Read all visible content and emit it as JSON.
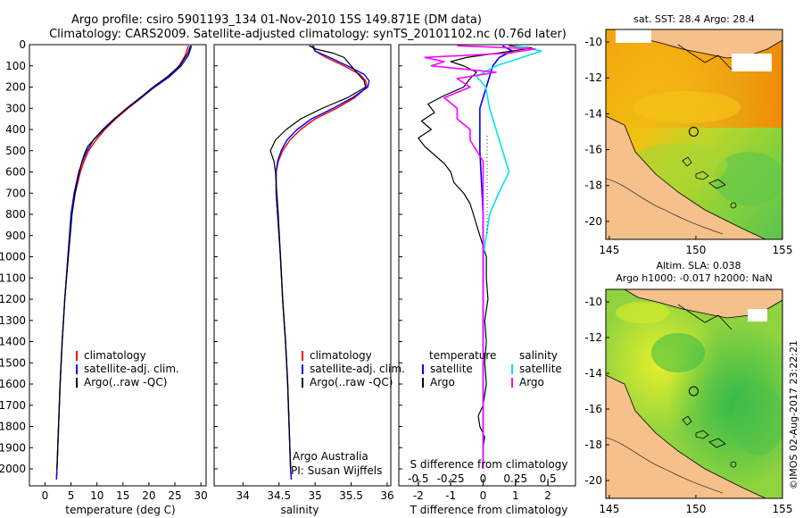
{
  "header": {
    "line1": "Argo profile: csiro 5901193_134 01-Nov-2010 15S 149.871E (DM data)",
    "line2": "Climatology: CARS2009. Satellite-adjusted climatology: synTS_20101102.nc (0.76d later)"
  },
  "colors": {
    "climatology": "#ff0000",
    "satellite": "#0000ff",
    "argo": "#000000",
    "s_satellite": "#00e5ee",
    "s_argo": "#ff00ff",
    "land": "#f5c08a"
  },
  "chart_data": [
    {
      "type": "line",
      "name": "temperature-profile",
      "xlabel": "temperature (deg C)",
      "ylabel": "",
      "xlim": [
        -3,
        31
      ],
      "ylim": [
        2080,
        0
      ],
      "xticks": [
        0,
        5,
        10,
        15,
        20,
        25,
        30
      ],
      "yticks": [
        0,
        100,
        200,
        300,
        400,
        500,
        600,
        700,
        800,
        900,
        1000,
        1100,
        1200,
        1300,
        1400,
        1500,
        1600,
        1700,
        1800,
        1900,
        2000
      ],
      "legend": [
        "climatology",
        "satellite-adj. clim.",
        "Argo(..raw -QC)"
      ],
      "series": [
        {
          "name": "climatology",
          "color": "#ff0000",
          "width": 1.4,
          "pressure": [
            5,
            50,
            100,
            150,
            200,
            250,
            300,
            350,
            400,
            450,
            500,
            550,
            600,
            700,
            800,
            1000,
            1200,
            1400,
            1600,
            1800,
            2000,
            2050
          ],
          "values": [
            27.6,
            27.0,
            25.8,
            23.8,
            21.0,
            18.6,
            16.0,
            13.6,
            11.5,
            9.8,
            8.4,
            7.5,
            6.8,
            5.8,
            5.1,
            4.4,
            3.8,
            3.3,
            2.9,
            2.6,
            2.3,
            2.2
          ]
        },
        {
          "name": "satellite",
          "color": "#0000ff",
          "width": 1.4,
          "pressure": [
            5,
            50,
            100,
            150,
            200,
            250,
            300,
            350,
            400,
            450,
            500,
            550,
            600,
            700,
            800,
            1000,
            1200,
            1400,
            1600,
            1800,
            2000,
            2050
          ],
          "values": [
            28.2,
            27.6,
            26.2,
            24.0,
            21.1,
            18.5,
            15.8,
            13.3,
            11.1,
            9.3,
            8.1,
            7.2,
            6.5,
            5.6,
            5.0,
            4.4,
            3.8,
            3.3,
            2.9,
            2.6,
            2.3,
            2.2
          ]
        },
        {
          "name": "argo",
          "color": "#000000",
          "width": 1.2,
          "pressure": [
            5,
            40,
            100,
            150,
            200,
            250,
            300,
            350,
            400,
            450,
            480,
            520,
            560,
            600,
            700,
            800,
            1000,
            1200,
            1400,
            1600,
            1800,
            2000
          ],
          "values": [
            28.0,
            27.5,
            25.9,
            23.6,
            20.8,
            18.3,
            15.7,
            13.4,
            11.3,
            9.3,
            8.2,
            7.5,
            7.0,
            6.6,
            5.8,
            5.2,
            4.5,
            3.8,
            3.3,
            2.9,
            2.6,
            2.3
          ]
        }
      ]
    },
    {
      "type": "line",
      "name": "salinity-profile",
      "xlabel": "salinity",
      "xlim": [
        33.6,
        36.05
      ],
      "ylim": [
        2080,
        0
      ],
      "xticks": [
        34,
        34.5,
        35,
        35.5,
        36
      ],
      "legend": [
        "climatology",
        "satellite-adj. clim.",
        "Argo(..raw -QC)"
      ],
      "annotation": [
        "Argo Australia",
        "PI: Susan Wijffels"
      ],
      "series": [
        {
          "name": "climatology",
          "color": "#ff0000",
          "width": 1.4,
          "pressure": [
            5,
            30,
            60,
            100,
            140,
            170,
            200,
            250,
            300,
            350,
            400,
            450,
            500,
            550,
            600,
            700,
            800,
            1000,
            1200,
            1400,
            1600,
            1800,
            2000,
            2050
          ],
          "values": [
            34.98,
            35.0,
            35.15,
            35.4,
            35.62,
            35.7,
            35.72,
            35.55,
            35.3,
            35.0,
            34.8,
            34.65,
            34.55,
            34.49,
            34.46,
            34.46,
            34.48,
            34.52,
            34.55,
            34.59,
            34.62,
            34.64,
            34.66,
            34.67
          ]
        },
        {
          "name": "satellite",
          "color": "#0000ff",
          "width": 1.4,
          "pressure": [
            5,
            30,
            60,
            100,
            140,
            170,
            200,
            250,
            300,
            350,
            400,
            450,
            500,
            550,
            600,
            700,
            800,
            1000,
            1200,
            1400,
            1600,
            1800,
            2000,
            2050
          ],
          "values": [
            34.96,
            35.0,
            35.2,
            35.45,
            35.68,
            35.75,
            35.73,
            35.52,
            35.25,
            34.95,
            34.75,
            34.61,
            34.53,
            34.48,
            34.46,
            34.46,
            34.48,
            34.52,
            34.55,
            34.59,
            34.62,
            34.64,
            34.66,
            34.67
          ]
        },
        {
          "name": "argo",
          "color": "#000000",
          "width": 1.2,
          "pressure": [
            5,
            20,
            40,
            60,
            100,
            140,
            170,
            200,
            250,
            300,
            350,
            400,
            450,
            500,
            550,
            600,
            650,
            700,
            800,
            1000,
            1200,
            1400,
            1600,
            1800,
            2000
          ],
          "values": [
            34.92,
            35.0,
            35.25,
            35.4,
            35.5,
            35.6,
            35.68,
            35.7,
            35.45,
            35.1,
            34.8,
            34.6,
            34.45,
            34.38,
            34.43,
            34.45,
            34.46,
            34.47,
            34.49,
            34.52,
            34.55,
            34.59,
            34.62,
            34.64,
            34.66
          ]
        }
      ]
    },
    {
      "type": "line",
      "name": "difference-profile",
      "xlabel": "T difference from climatology",
      "top_axis_label": "S difference from climatology",
      "xlim": [
        -2.6,
        2.85
      ],
      "ylim": [
        2080,
        0
      ],
      "xticks": [
        -2,
        -1,
        0,
        1,
        2
      ],
      "top_ticks": [
        -0.5,
        -0.25,
        0,
        0.25,
        0.5
      ],
      "top_tick_labels": [
        "-0.5",
        "-0.25",
        "0",
        "0.25",
        "0.5"
      ],
      "legend_temperature": {
        "title": "temperature",
        "items": [
          "satellite",
          "Argo"
        ]
      },
      "legend_salinity": {
        "title": "salinity",
        "items": [
          "satellite",
          "Argo"
        ]
      },
      "series": [
        {
          "name": "T satellite",
          "color": "#0000ff",
          "width": 1.6,
          "pressure": [
            5,
            30,
            60,
            100,
            150,
            200,
            300,
            500,
            800,
            1000,
            1500,
            2000
          ],
          "values": [
            0.6,
            0.9,
            0.5,
            0.3,
            0.2,
            0.1,
            -0.1,
            -0.1,
            0,
            0,
            0,
            0
          ]
        },
        {
          "name": "T Argo",
          "color": "#000000",
          "width": 1.2,
          "pressure": [
            5,
            15,
            30,
            60,
            80,
            100,
            130,
            160,
            200,
            240,
            280,
            320,
            360,
            400,
            440,
            480,
            520,
            560,
            600,
            650,
            700,
            750,
            800,
            850,
            1000,
            1100,
            1200,
            1300,
            1400,
            1500,
            1600,
            1700,
            1750,
            1800,
            1850,
            1900,
            2000
          ],
          "values": [
            0.8,
            1.5,
            0.9,
            -0.5,
            -1.0,
            -0.6,
            -0.2,
            -0.4,
            -0.6,
            -1.2,
            -1.7,
            -1.5,
            -1.9,
            -1.6,
            -2.0,
            -1.8,
            -1.5,
            -1.2,
            -1.0,
            -0.9,
            -0.6,
            -0.4,
            -0.3,
            -0.2,
            0.1,
            0.1,
            0.15,
            0.05,
            0.1,
            0.05,
            0.1,
            0.0,
            -0.15,
            -0.1,
            0.05,
            0,
            0
          ]
        },
        {
          "name": "S satellite",
          "color": "#00e5ee",
          "width": 1.6,
          "pressure": [
            5,
            30,
            60,
            100,
            150,
            200,
            300,
            400,
            500,
            600,
            700,
            800,
            1000,
            1500,
            2000
          ],
          "values": [
            0.25,
            0.45,
            0.3,
            0.1,
            -0.05,
            0.02,
            0.05,
            0.1,
            0.15,
            0.2,
            0.12,
            0.05,
            0,
            0,
            0
          ]
        },
        {
          "name": "S Argo",
          "color": "#ff00ff",
          "width": 1.6,
          "pressure": [
            5,
            20,
            40,
            60,
            80,
            100,
            130,
            160,
            200,
            250,
            300,
            350,
            400,
            450,
            500,
            550,
            600,
            700,
            800,
            900,
            1000,
            1500,
            2000
          ],
          "values": [
            -0.2,
            0.4,
            0.2,
            -0.45,
            -0.3,
            -0.4,
            0.1,
            -0.2,
            -0.1,
            -0.3,
            -0.2,
            -0.2,
            -0.1,
            -0.1,
            -0.05,
            0,
            0,
            0,
            0,
            0,
            0,
            0,
            0
          ]
        }
      ]
    },
    {
      "type": "heatmap",
      "name": "sst-map",
      "title": "sat. SST: 28.4 Argo: 28.4",
      "xlim": [
        144.8,
        155
      ],
      "ylim": [
        -21,
        -9.3
      ],
      "xticks": [
        145,
        150,
        155
      ],
      "yticks": [
        -10,
        -12,
        -14,
        -16,
        -18,
        -20
      ],
      "argo_position": {
        "lon": 149.871,
        "lat": -15
      }
    },
    {
      "type": "heatmap",
      "name": "sla-map",
      "title": "Altim. SLA: 0.038",
      "subtitle": "Argo h1000: -0.017 h2000: NaN",
      "xlim": [
        144.8,
        155
      ],
      "ylim": [
        -21,
        -9.3
      ],
      "xticks": [
        145,
        150,
        155
      ],
      "yticks": [
        -10,
        -12,
        -14,
        -16,
        -18,
        -20
      ],
      "argo_position": {
        "lon": 149.871,
        "lat": -15
      }
    }
  ],
  "footer": {
    "timestamp": "©IMOS 02-Aug-2017 23:22:21"
  }
}
